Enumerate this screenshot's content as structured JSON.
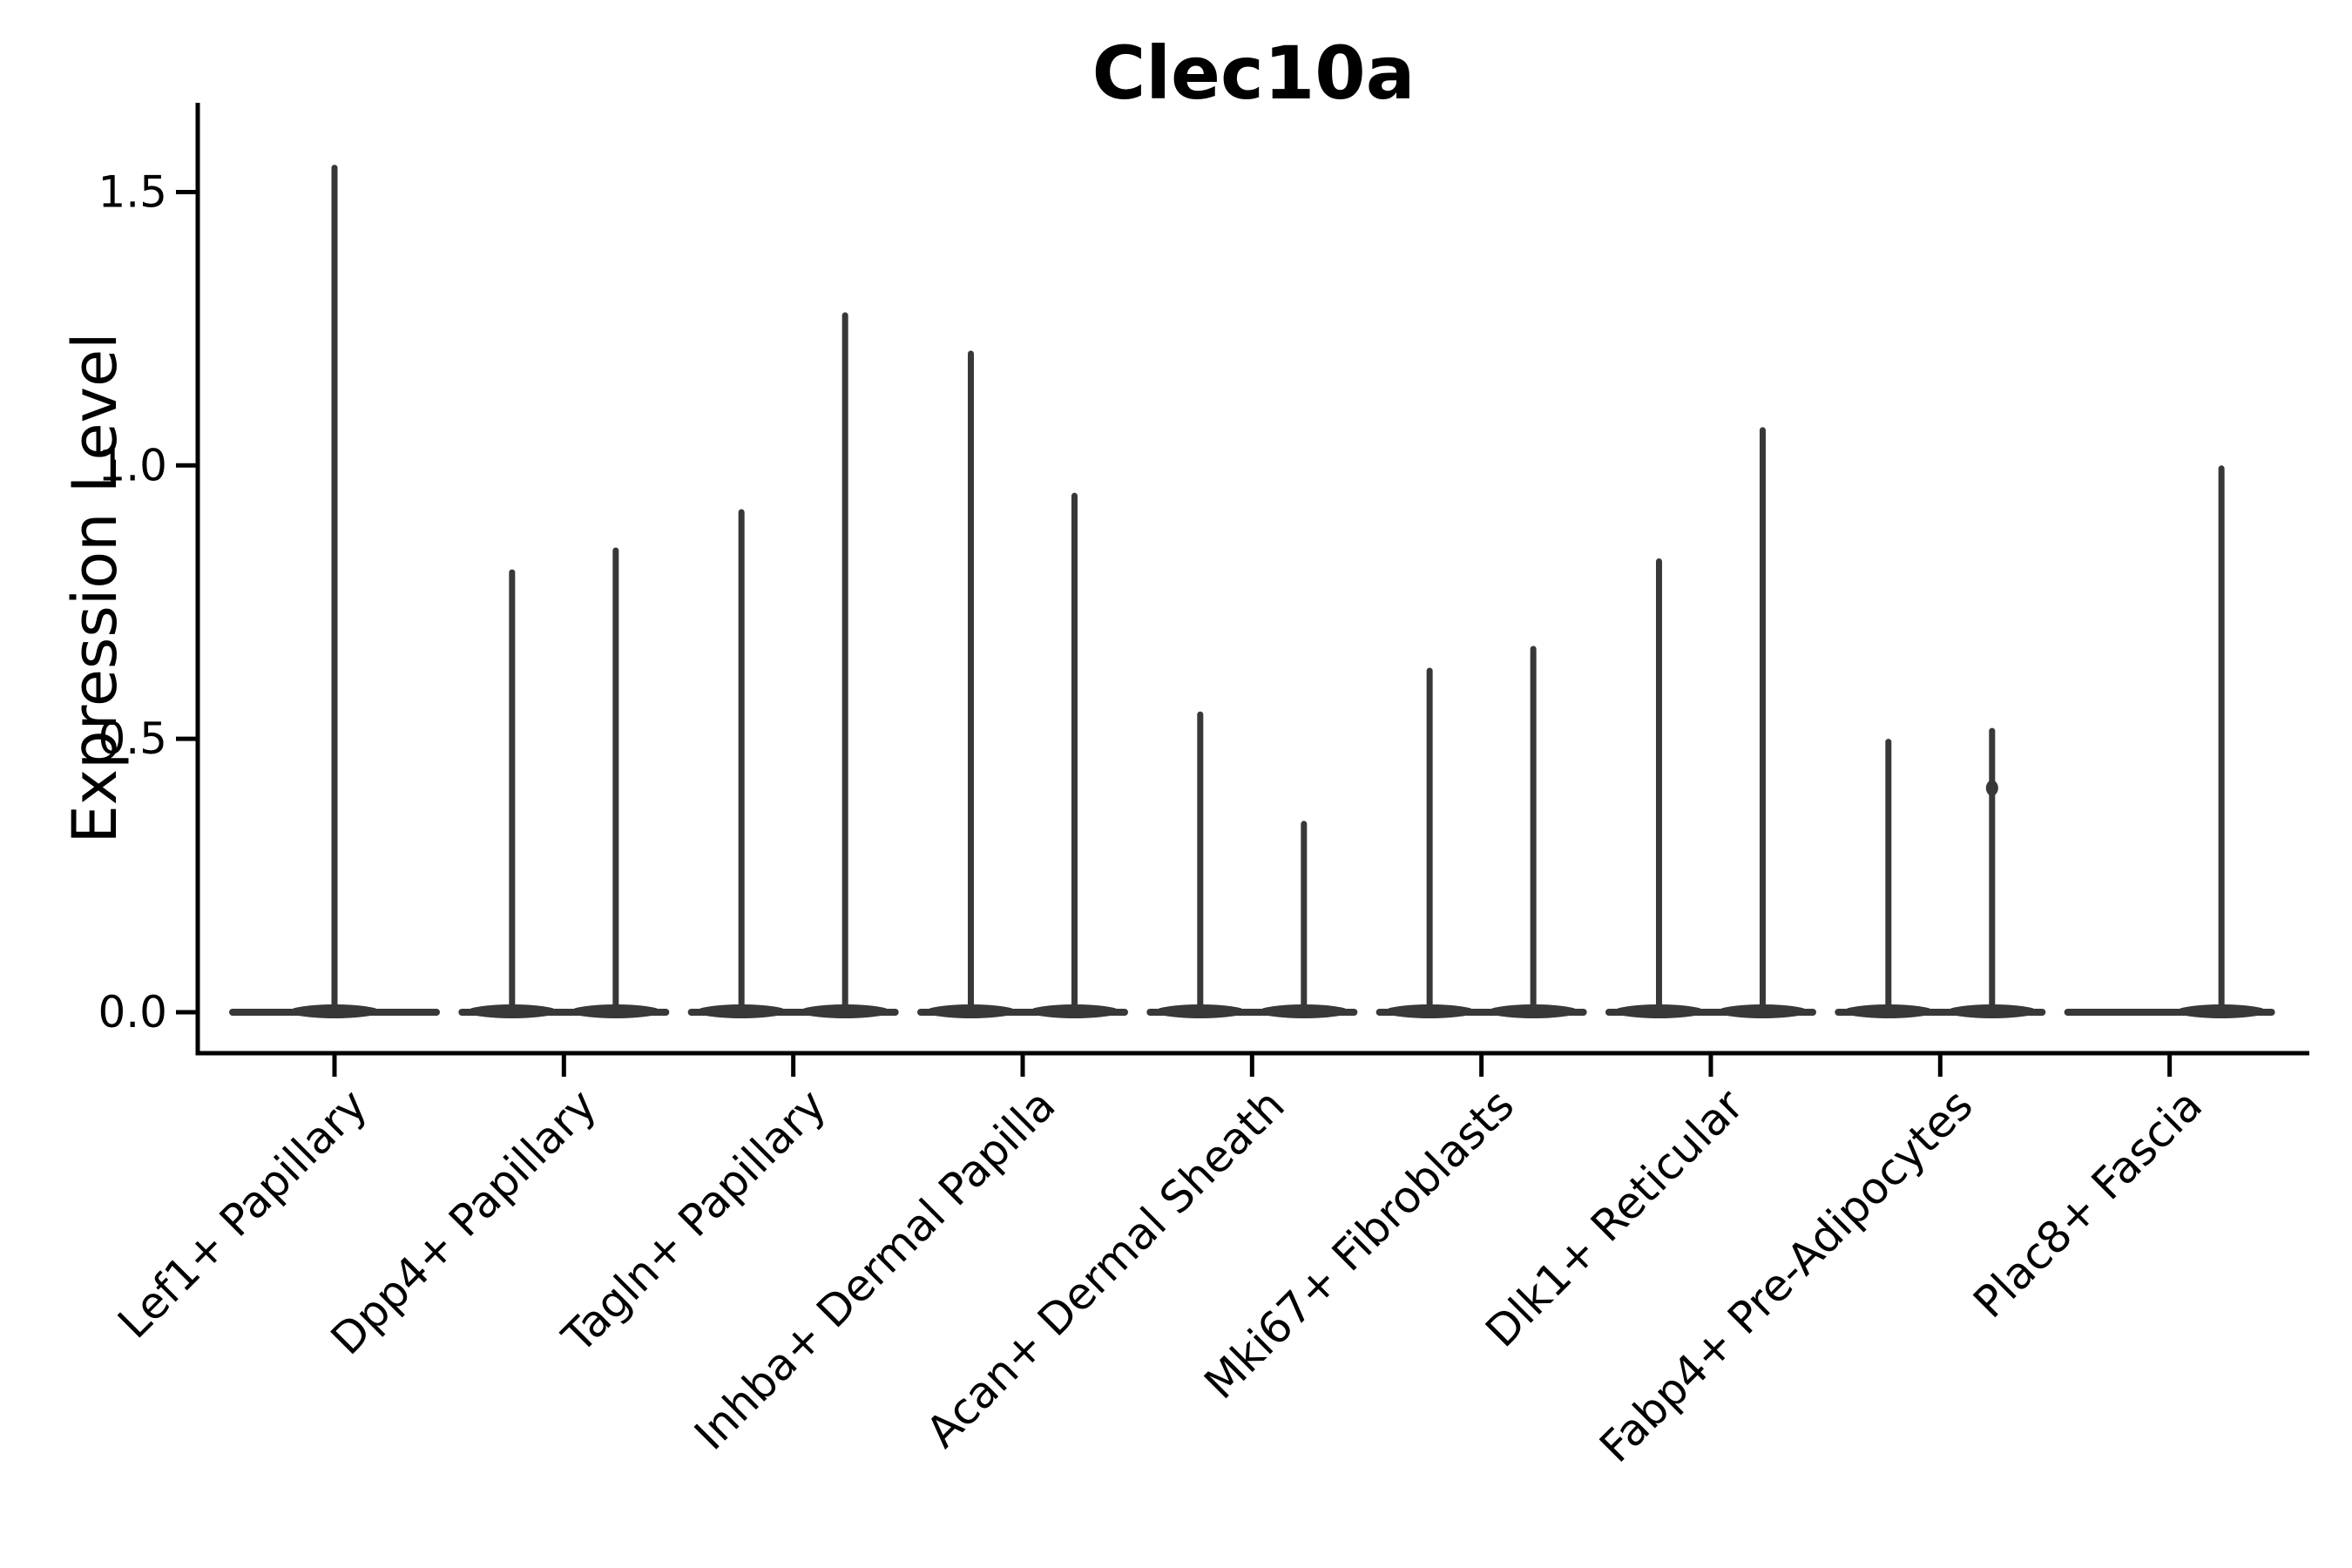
{
  "chart_data": {
    "type": "violin",
    "title": "Clec10a",
    "ylabel": "Expression Level",
    "xlabel": "",
    "ylim": [
      0,
      1.6
    ],
    "yticks": {
      "values": [
        0,
        0.5,
        1.0,
        1.5
      ],
      "labels": [
        "0.0",
        "0.5",
        "1.0",
        "1.5"
      ]
    },
    "grid": false,
    "legend": "none",
    "categories": [
      "Lef1+ Papillary",
      "Dpp4+ Papillary",
      "Tagln+ Papillary",
      "Inhba+ Dermal Papilla",
      "Acan+ Dermal Sheath",
      "Mki67+ Fibroblasts",
      "Dlk1+ Reticular",
      "Fabp4+ Pre-Adipocytes",
      "Plac8+ Fascia"
    ],
    "violin_description": "Each category shows a flat violin bulk at expression 0 spanning the category width, with thin spikes rising to the max expression value; most categories contain two dodged violins (left/right), Lef1+ Papillary has one centered violin, Plac8+ Fascia has a spike only in the right slot.",
    "violins": [
      {
        "category_index": 0,
        "slot": "center",
        "max_expression": 1.55
      },
      {
        "category_index": 1,
        "slot": "left",
        "max_expression": 0.81
      },
      {
        "category_index": 1,
        "slot": "right",
        "max_expression": 0.85
      },
      {
        "category_index": 2,
        "slot": "left",
        "max_expression": 0.92
      },
      {
        "category_index": 2,
        "slot": "right",
        "max_expression": 1.28
      },
      {
        "category_index": 3,
        "slot": "left",
        "max_expression": 1.21
      },
      {
        "category_index": 3,
        "slot": "right",
        "max_expression": 0.95
      },
      {
        "category_index": 4,
        "slot": "left",
        "max_expression": 0.55
      },
      {
        "category_index": 4,
        "slot": "right",
        "max_expression": 0.35
      },
      {
        "category_index": 5,
        "slot": "left",
        "max_expression": 0.63
      },
      {
        "category_index": 5,
        "slot": "right",
        "max_expression": 0.67
      },
      {
        "category_index": 6,
        "slot": "left",
        "max_expression": 0.83
      },
      {
        "category_index": 6,
        "slot": "right",
        "max_expression": 1.07
      },
      {
        "category_index": 7,
        "slot": "left",
        "max_expression": 0.5
      },
      {
        "category_index": 7,
        "slot": "right",
        "max_expression": 0.52,
        "knot_at": 0.41
      },
      {
        "category_index": 8,
        "slot": "right",
        "max_expression": 1.0
      }
    ],
    "colors": {
      "violin": "#383838",
      "axis": "#000000",
      "text": "#000000",
      "background": "#ffffff"
    }
  }
}
